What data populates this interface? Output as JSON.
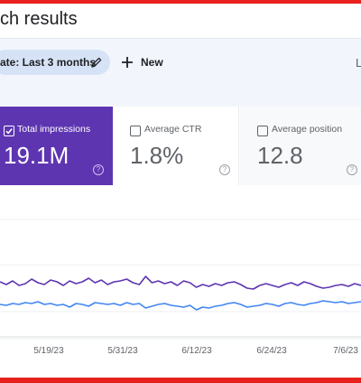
{
  "header": {
    "title": "ch results"
  },
  "filters": {
    "date_chip": "ate: Last 3 months",
    "new_label": "New",
    "edge_letter": "L"
  },
  "metrics": [
    {
      "label": "Total impressions",
      "value": "19.1M",
      "selected": true,
      "help": "?"
    },
    {
      "label": "Average CTR",
      "value": "1.8%",
      "selected": false,
      "help": "?"
    },
    {
      "label": "Average position",
      "value": "12.8",
      "selected": false,
      "help": "?"
    }
  ],
  "colors": {
    "impressions": "#5e35b1",
    "clicks": "#4285f4",
    "frame": "#e8211d"
  },
  "chart_data": {
    "type": "line",
    "x_ticks": [
      "5/19/23",
      "5/31/23",
      "6/12/23",
      "6/24/23",
      "7/6/23"
    ],
    "grid": true,
    "series": [
      {
        "values": [
          312,
          315,
          311,
          316,
          314,
          309,
          313,
          315,
          310,
          312,
          316,
          311,
          314,
          312,
          308,
          313,
          310,
          315,
          312,
          311,
          309,
          313,
          315,
          306,
          313,
          311,
          314,
          312,
          316,
          311,
          313,
          318,
          315,
          317,
          314,
          316,
          313,
          312,
          315,
          319,
          320,
          316,
          314,
          316,
          318,
          315,
          313,
          316,
          312,
          314,
          317,
          319,
          318,
          316,
          315,
          317,
          314,
          316
        ]
      },
      {
        "values": [
          337,
          338,
          336,
          337,
          335,
          336,
          334,
          337,
          336,
          338,
          337,
          340,
          336,
          337,
          339,
          335,
          336,
          337,
          336,
          338,
          335,
          337,
          336,
          341,
          339,
          337,
          336,
          338,
          339,
          340,
          338,
          343,
          340,
          341,
          339,
          338,
          336,
          335,
          337,
          340,
          339,
          338,
          336,
          337,
          339,
          336,
          335,
          337,
          338,
          336,
          335,
          333,
          334,
          335,
          334,
          336,
          335,
          334
        ]
      }
    ]
  }
}
